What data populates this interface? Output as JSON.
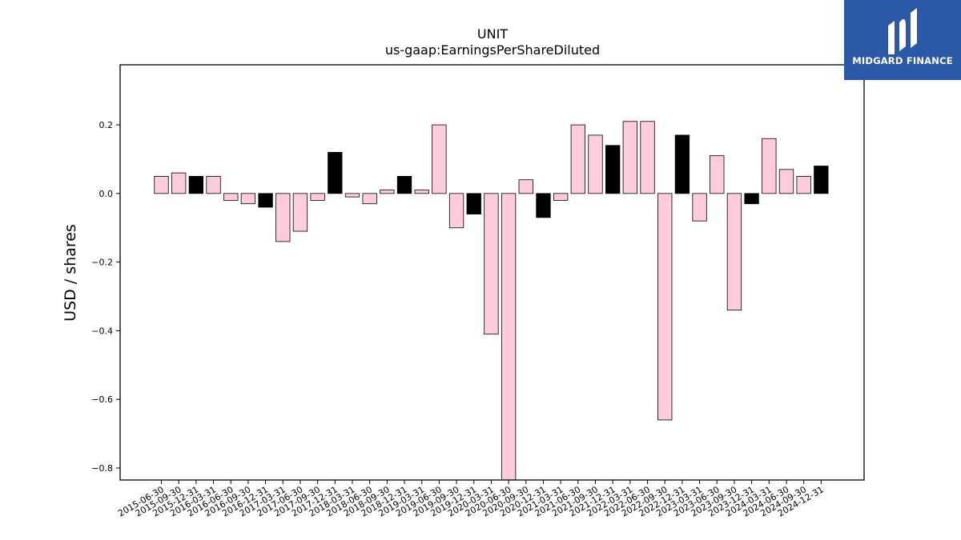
{
  "brand": {
    "name": "MIDGARD FINANCE",
    "color": "#2b59a8"
  },
  "chart_data": {
    "type": "bar",
    "title": "UNIT",
    "subtitle": "us-gaap:EarningsPerShareDiluted",
    "xlabel": "",
    "ylabel": "USD / shares",
    "ylim": [
      -0.835,
      0.375
    ],
    "yticks": [
      0.2,
      0.0,
      -0.2,
      -0.4,
      -0.6,
      -0.8
    ],
    "ytick_labels": [
      "0.2",
      "0.0",
      "−0.2",
      "−0.4",
      "−0.6",
      "−0.8"
    ],
    "grid": false,
    "legend": "none",
    "colors": {
      "quarter": "#ffccdd",
      "year_end": "#000000",
      "edge": "#000000"
    },
    "categories": [
      "2015-06-30",
      "2015-09-30",
      "2015-12-31",
      "2016-03-31",
      "2016-06-30",
      "2016-09-30",
      "2016-12-31",
      "2017-03-31",
      "2017-06-30",
      "2017-09-30",
      "2017-12-31",
      "2018-03-31",
      "2018-06-30",
      "2018-09-30",
      "2018-12-31",
      "2019-03-31",
      "2019-06-30",
      "2019-09-30",
      "2019-12-31",
      "2020-03-31",
      "2020-06-30",
      "2020-09-30",
      "2020-12-31",
      "2021-03-31",
      "2021-06-30",
      "2021-09-30",
      "2021-12-31",
      "2022-03-31",
      "2022-06-30",
      "2022-09-30",
      "2022-12-31",
      "2023-03-31",
      "2023-06-30",
      "2023-09-30",
      "2023-12-31",
      "2024-03-31",
      "2024-06-30",
      "2024-09-30",
      "2024-12-31"
    ],
    "values": [
      0.05,
      0.06,
      0.05,
      0.05,
      -0.02,
      -0.03,
      -0.04,
      -0.14,
      -0.11,
      -0.02,
      0.12,
      -0.01,
      -0.03,
      0.01,
      0.05,
      0.01,
      0.2,
      -0.1,
      -0.06,
      -0.41,
      -0.84,
      0.04,
      -0.07,
      -0.02,
      0.2,
      0.17,
      0.14,
      0.21,
      0.21,
      -0.66,
      0.17,
      -0.08,
      0.11,
      -0.34,
      -0.03,
      0.16,
      0.07,
      0.05,
      0.08
    ],
    "year_end": [
      false,
      false,
      true,
      false,
      false,
      false,
      true,
      false,
      false,
      false,
      true,
      false,
      false,
      false,
      true,
      false,
      false,
      false,
      true,
      false,
      false,
      false,
      true,
      false,
      false,
      false,
      true,
      false,
      false,
      false,
      true,
      false,
      false,
      false,
      true,
      false,
      false,
      false,
      true
    ]
  }
}
